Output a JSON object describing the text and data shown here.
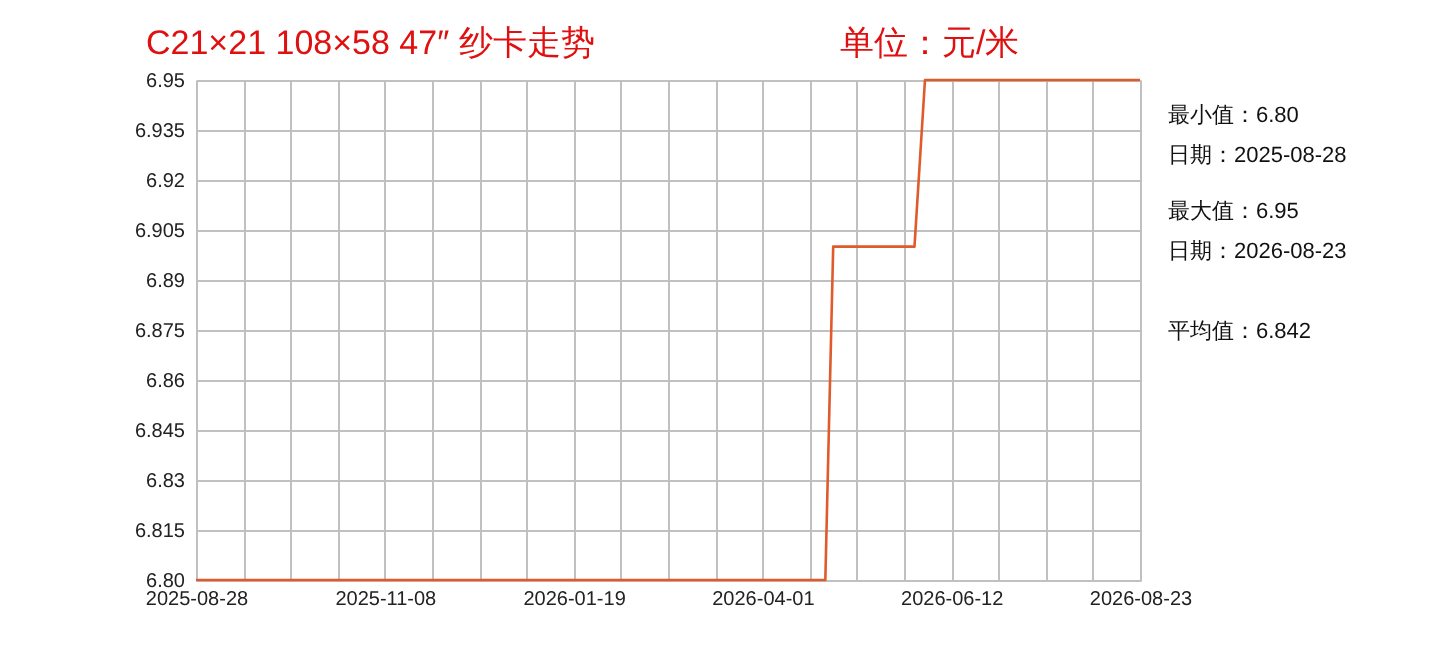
{
  "chart_data": {
    "type": "line",
    "title": "C21×21 108×58 47″ 纱卡走势",
    "subtitle": "单位：元/米",
    "x": [
      "2025-08-28",
      "2026-04-25",
      "2026-04-28",
      "2026-05-29",
      "2026-06-02",
      "2026-08-23"
    ],
    "series": [
      {
        "color": "#e05a2b",
        "values": [
          6.8,
          6.8,
          6.9,
          6.9,
          6.95,
          6.95
        ]
      }
    ],
    "xlim": [
      "2025-08-28",
      "2026-08-23"
    ],
    "xticks": [
      "2025-08-28",
      {
        "value": "2025-09-15",
        "label": null
      },
      {
        "value": "2025-10-03",
        "label": null
      },
      {
        "value": "2025-10-21",
        "label": null
      },
      "2025-11-08",
      {
        "value": "2025-11-26",
        "label": null
      },
      {
        "value": "2025-12-14",
        "label": null
      },
      {
        "value": "2026-01-01",
        "label": null
      },
      "2026-01-19",
      {
        "value": "2026-02-06",
        "label": null
      },
      {
        "value": "2026-02-24",
        "label": null
      },
      {
        "value": "2026-03-14",
        "label": null
      },
      "2026-04-01",
      {
        "value": "2026-04-19",
        "label": null
      },
      {
        "value": "2026-05-07",
        "label": null
      },
      {
        "value": "2026-05-25",
        "label": null
      },
      "2026-06-12",
      {
        "value": "2026-06-30",
        "label": null
      },
      {
        "value": "2026-07-18",
        "label": null
      },
      {
        "value": "2026-08-05",
        "label": null
      },
      "2026-08-23"
    ],
    "ylim": [
      6.8,
      6.95
    ],
    "yticks": [
      {
        "value": 6.8,
        "label": "6.80"
      },
      6.815,
      6.83,
      6.845,
      6.86,
      6.875,
      6.89,
      6.905,
      6.92,
      6.935,
      6.95
    ],
    "grid": true,
    "annotations": [
      "最小值：6.80",
      "　日期：2025-08-28",
      "最大值：6.95",
      "　日期：2026-08-23",
      "平均值：6.842"
    ]
  }
}
